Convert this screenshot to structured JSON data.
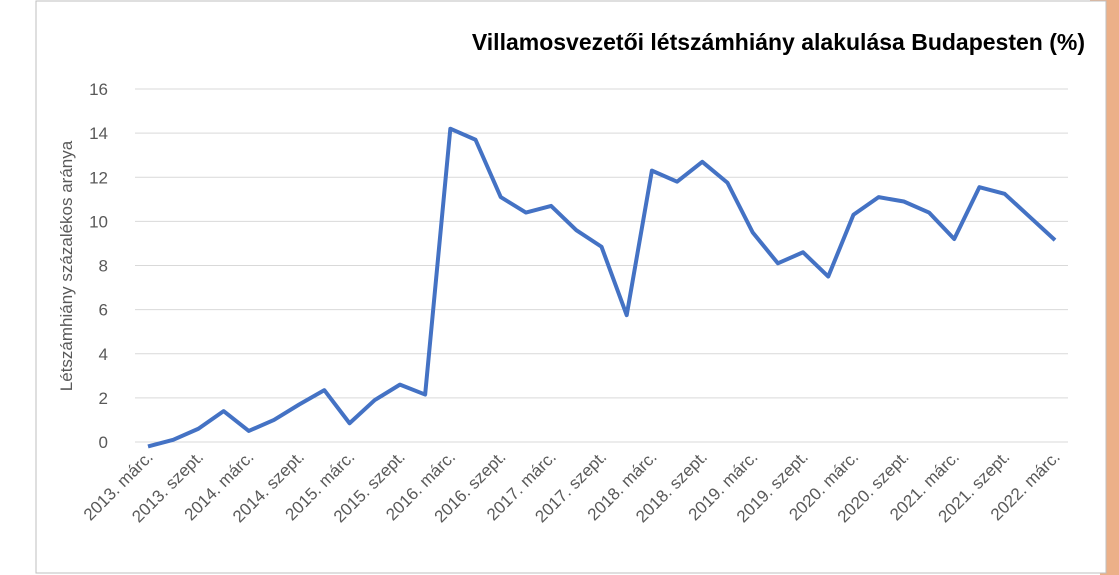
{
  "chart_data": {
    "type": "line",
    "title": "Villamosvezetői létszámhiány alakulása Budapesten (%)",
    "y_label": "Létszámhiány százalékos aránya",
    "categories": [
      "2013. márc.",
      null,
      "2013. szept.",
      null,
      "2014. márc.",
      null,
      "2014. szept.",
      null,
      "2015. márc.",
      null,
      "2015. szept.",
      null,
      "2016. márc.",
      null,
      "2016. szept.",
      null,
      "2017. márc.",
      null,
      "2017. szept.",
      null,
      "2018. márc.",
      null,
      "2018. szept.",
      null,
      "2019. márc.",
      null,
      "2019. szept.",
      null,
      "2020. márc.",
      null,
      "2020. szept.",
      null,
      "2021. márc.",
      null,
      "2021. szept.",
      null,
      "2022. márc."
    ],
    "series": [
      {
        "name": "Létszámhiány",
        "color": "#4472c4",
        "values": [
          -0.2,
          0.1,
          0.6,
          1.4,
          0.5,
          1.0,
          1.7,
          2.35,
          0.85,
          1.9,
          2.6,
          2.15,
          14.2,
          13.7,
          11.1,
          10.4,
          10.7,
          9.6,
          8.85,
          5.75,
          12.3,
          11.8,
          12.7,
          11.75,
          9.5,
          8.1,
          8.6,
          7.5,
          10.3,
          11.1,
          10.9,
          10.4,
          9.2,
          11.55,
          11.25,
          10.2,
          9.15
        ]
      }
    ],
    "ylim": [
      0,
      16
    ],
    "yticks": [
      0,
      2,
      4,
      6,
      8,
      10,
      12,
      14,
      16
    ],
    "grid": true
  }
}
